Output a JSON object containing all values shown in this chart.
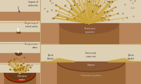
{
  "bg_color": "#d4b896",
  "sky_color": "#ddd0b5",
  "ground_color": "#b8845a",
  "ground_dark": "#9a6535",
  "ejecta_gold": "#c8a030",
  "ejecta_light": "#d4b060",
  "ejecta_tip": "#7a5010",
  "crater_fill": "#8a5530",
  "crater_dark": "#6a3a18",
  "text_color": "#333333",
  "red_arc": "#cc2200",
  "fracture_dot": "#999999",
  "separator": "#c0a878"
}
